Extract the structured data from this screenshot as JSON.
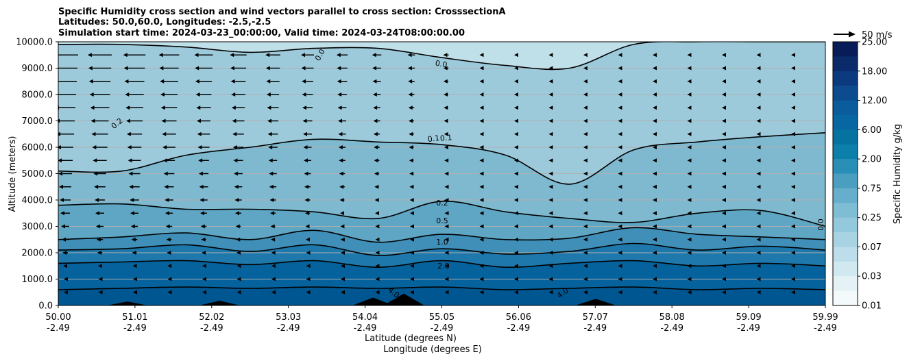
{
  "chart_data": {
    "type": "contour",
    "title_lines": [
      "Specific Humidity cross section and wind vectors parallel to cross section: CrosssectionA",
      "Latitudes: 50.0,60.0, Longitudes: -2.5,-2.5",
      "Simulation start time: 2024-03-23_00:00:00, Valid time: 2024-03-24T08:00:00.00"
    ],
    "ylabel": "Altitude (meters)",
    "xlabel_lat": "Latitude (degrees N)",
    "xlabel_lon": "Longitude (degrees E)",
    "ylim": [
      0,
      10000
    ],
    "yticks": [
      "0.0",
      "1000.0",
      "2000.0",
      "3000.0",
      "4000.0",
      "5000.0",
      "6000.0",
      "7000.0",
      "8000.0",
      "9000.0",
      "10000.0"
    ],
    "xticks_lat": [
      "50.00",
      "51.01",
      "52.02",
      "53.03",
      "54.04",
      "55.05",
      "56.06",
      "57.07",
      "58.08",
      "59.09",
      "59.99"
    ],
    "xticks_lon": [
      "-2.49",
      "-2.49",
      "-2.49",
      "-2.49",
      "-2.49",
      "-2.49",
      "-2.49",
      "-2.49",
      "-2.49",
      "-2.49",
      "-2.49"
    ],
    "grid": "horizontal",
    "colorbar": {
      "label": "Specific Humidity g/kg",
      "ticks": [
        "25.00",
        "18.00",
        "12.00",
        "6.00",
        "2.00",
        "0.75",
        "0.25",
        "0.07",
        "0.03",
        "0.01"
      ]
    },
    "quiver_key": "50 m/s",
    "contour_levels": [
      {
        "level": "4.0",
        "altitude_m": [
          600,
          650,
          700,
          650,
          700,
          650,
          700,
          600,
          650,
          700,
          600,
          650,
          600
        ]
      },
      {
        "level": "2.0",
        "altitude_m": [
          1600,
          1650,
          1700,
          1550,
          1700,
          1450,
          1700,
          1450,
          1600,
          1700,
          1500,
          1600,
          1500
        ]
      },
      {
        "level": "1.0",
        "altitude_m": [
          2100,
          2150,
          2300,
          2050,
          2300,
          1900,
          2150,
          1950,
          2050,
          2350,
          2100,
          2250,
          2100
        ]
      },
      {
        "level": "0.5",
        "altitude_m": [
          2500,
          2600,
          2750,
          2500,
          2850,
          2400,
          2700,
          2500,
          2550,
          2950,
          2700,
          2600,
          2500
        ]
      },
      {
        "level": "0.2",
        "altitude_m": [
          3800,
          3850,
          3650,
          3650,
          3550,
          3300,
          3950,
          3550,
          3300,
          3150,
          3500,
          3600,
          3000
        ]
      },
      {
        "level": "0.1",
        "altitude_m": [
          5100,
          5100,
          5700,
          6000,
          6300,
          6200,
          6100,
          5700,
          4600,
          5900,
          6200,
          6400,
          6550
        ]
      },
      {
        "level": "0.0",
        "altitude_m": [
          9900,
          9900,
          9800,
          9600,
          9750,
          9750,
          9400,
          9100,
          9000,
          9900,
          10000,
          10000,
          10000
        ]
      }
    ],
    "inline_labels": [
      "0.0",
      "0.0",
      "0.2",
      "0.1",
      "0.1",
      "0.2",
      "0.5",
      "1.0",
      "2.0",
      "4.0",
      "4.0",
      "0.0"
    ],
    "terrain_peaks": [
      {
        "lat": 50.9,
        "altitude_m": 150
      },
      {
        "lat": 52.1,
        "altitude_m": 180
      },
      {
        "lat": 54.1,
        "altitude_m": 300
      },
      {
        "lat": 54.5,
        "altitude_m": 450
      },
      {
        "lat": 57.0,
        "altitude_m": 250
      }
    ]
  }
}
